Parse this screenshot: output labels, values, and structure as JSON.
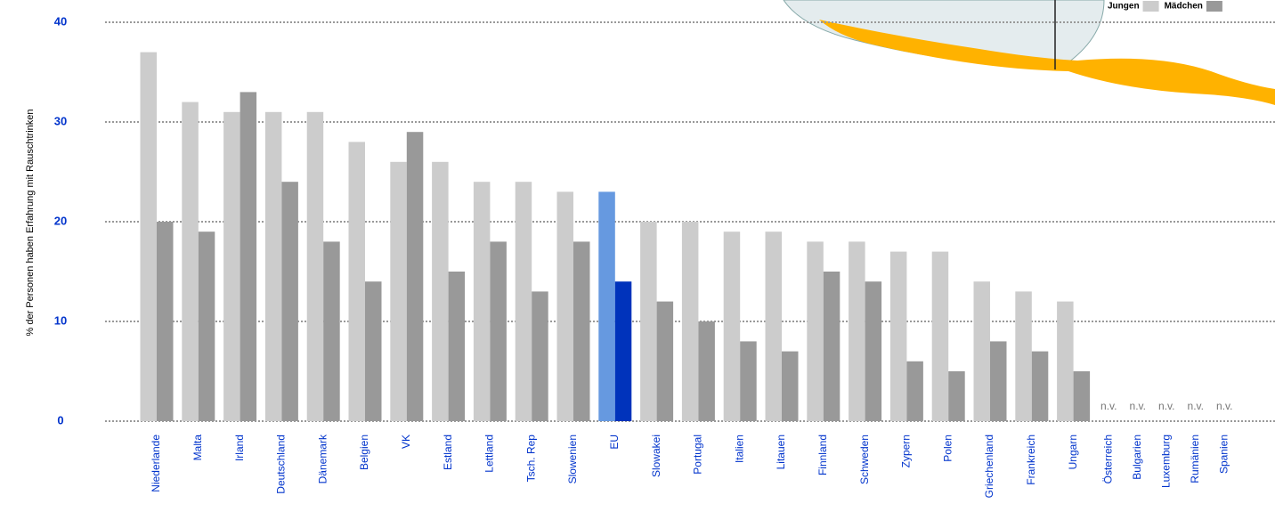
{
  "chart_data": {
    "type": "bar",
    "y_label": "% der Personen haben Erfahrung mit Rauschtrinken",
    "categories": [
      "Niederlande",
      "Malta",
      "Irland",
      "Deutschland",
      "Dänemark",
      "Belgien",
      "VK",
      "Estland",
      "Lettland",
      "Tsch. Rep",
      "Slowenien",
      "EU",
      "Slowakei",
      "Portugal",
      "Italien",
      "Litauen",
      "Finnland",
      "Schweden",
      "Zypern",
      "Polen",
      "Griechenland",
      "Frankreich",
      "Ungarn",
      "Österreich",
      "Bulgarien",
      "Luxemburg",
      "Rumänien",
      "Spanien"
    ],
    "series": [
      {
        "name": "Jungen",
        "color": "#cccccc",
        "highlight_color": "#6699e0",
        "values": [
          37,
          32,
          31,
          31,
          31,
          28,
          26,
          26,
          24,
          24,
          23,
          23,
          20,
          20,
          19,
          19,
          18,
          18,
          17,
          17,
          14,
          13,
          12,
          null,
          null,
          null,
          null,
          null
        ],
        "value_labels": [
          null,
          null,
          null,
          null,
          null,
          null,
          null,
          null,
          null,
          null,
          null,
          null,
          null,
          null,
          null,
          null,
          null,
          null,
          null,
          null,
          null,
          null,
          null,
          "n.v.",
          "n.v.",
          "n.v.",
          "n.v.",
          "n.v."
        ]
      },
      {
        "name": "Mädchen",
        "color": "#999999",
        "highlight_color": "#0033bb",
        "values": [
          20,
          19,
          33,
          24,
          18,
          14,
          29,
          15,
          18,
          13,
          18,
          14,
          12,
          10,
          8,
          7,
          15,
          14,
          6,
          5,
          8,
          7,
          5,
          null,
          null,
          null,
          null,
          null
        ]
      }
    ],
    "highlight_category": "EU",
    "ylim": [
      0,
      40
    ],
    "yticks": [
      0,
      10,
      20,
      30,
      40
    ],
    "grid": true,
    "legend": "top-right"
  }
}
